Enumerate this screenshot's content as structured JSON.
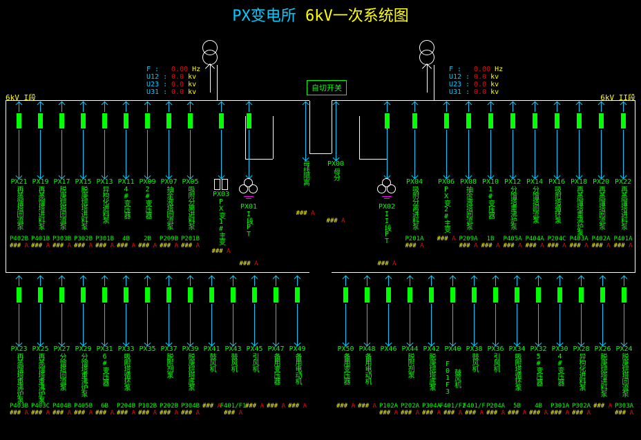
{
  "title": {
    "p1": "PX变电所",
    "p2": "6kV一次系统图"
  },
  "sections": {
    "left": "6kV I段",
    "right": "6kV II段"
  },
  "switch_label": "自切开关",
  "colors": {
    "bg": "#000000",
    "breaker_on": "#00ff00",
    "breaker_off": "#ff0000",
    "text_id": "#00ff00",
    "text_cyan": "#00ccff",
    "text_yellow": "#ffff00",
    "text_red": "#ff0000",
    "busbar": "#ffffff",
    "ground": "#ff00ff"
  },
  "measurements": {
    "left": {
      "F": {
        "v": "0.00",
        "u": "Hz"
      },
      "U12": {
        "v": "0.0",
        "u": "kv"
      },
      "U23": {
        "v": "0.0",
        "u": "kv"
      },
      "U31": {
        "v": "0.0",
        "u": "kv"
      }
    },
    "right": {
      "F": {
        "v": "0.00",
        "u": "Hz"
      },
      "U12": {
        "v": "0.0",
        "u": "kv"
      },
      "U23": {
        "v": "0.0",
        "u": "kv"
      },
      "U31": {
        "v": "0.0",
        "u": "kv"
      }
    }
  },
  "reading_placeholder": {
    "hash": "###",
    "amp": "A"
  },
  "top_left": [
    {
      "id": "PX21",
      "name": "再蒸馏塔回流泵",
      "code": "P402B"
    },
    {
      "id": "PX19",
      "name": "再蒸馏塔进料泵",
      "code": "P401B"
    },
    {
      "id": "PX17",
      "name": "脱庚烷塔回流泵",
      "code": "P303B"
    },
    {
      "id": "PX15",
      "name": "脱庚烷塔进料泵",
      "code": "P302B"
    },
    {
      "id": "PX13",
      "name": "异构化进料泵",
      "code": "P301B"
    },
    {
      "id": "PX11",
      "name": "4#变压器",
      "code": "4B"
    },
    {
      "id": "PX09",
      "name": "2#变压器",
      "code": "2B"
    },
    {
      "id": "PX07",
      "name": "抽余液塔回流泵",
      "code": "P209B"
    },
    {
      "id": "PX05",
      "name": "吸附分离进料泵",
      "code": "P201B"
    }
  ],
  "mid_left": [
    {
      "id": "PX03",
      "name": "PX变1#主变",
      "code": "",
      "sym": "pt"
    },
    {
      "id": "PX01",
      "name": "I段PT",
      "code": "",
      "sym": "tri"
    }
  ],
  "mid_center": [
    {
      "id": "",
      "name": "母线隔离",
      "code": ""
    },
    {
      "id": "PX00",
      "name": "母分",
      "code": ""
    }
  ],
  "mid_right": [
    {
      "id": "PX02",
      "name": "II段PT",
      "code": "",
      "sym": "tri"
    },
    {
      "id": "PX04",
      "name": "吸附分离进料泵",
      "code": "P201A"
    }
  ],
  "top_right": [
    {
      "id": "PX06",
      "name": "PX变2#主变",
      "code": ""
    },
    {
      "id": "PX08",
      "name": "抽余液塔回流泵",
      "code": "P209A"
    },
    {
      "id": "PX10",
      "name": "1#变压器",
      "code": "1B"
    },
    {
      "id": "PX12",
      "name": "分馏塔重沸炉泵",
      "code": "P405A"
    },
    {
      "id": "PX14",
      "name": "分馏塔回流泵",
      "code": "P404A"
    },
    {
      "id": "PX16",
      "name": "吸附塔循环泵",
      "code": "P204C"
    },
    {
      "id": "PX18",
      "name": "再蒸馏塔重沸炉泵",
      "code": "P403A"
    },
    {
      "id": "PX20",
      "name": "再蒸馏塔回流泵",
      "code": "P402A"
    },
    {
      "id": "PX22",
      "name": "再蒸馏塔进料泵",
      "code": "P401A"
    }
  ],
  "bot_left": [
    {
      "id": "PX23",
      "name": "再蒸馏塔重沸炉泵",
      "code": "P403B"
    },
    {
      "id": "PX25",
      "name": "再蒸馏塔重沸炉泵",
      "code": "P403C"
    },
    {
      "id": "PX27",
      "name": "分馏塔回流泵",
      "code": "P404B"
    },
    {
      "id": "PX29",
      "name": "分馏塔重沸炉泵",
      "code": "P405B"
    },
    {
      "id": "PX31",
      "name": "6#变压器",
      "code": "6B"
    },
    {
      "id": "PX33",
      "name": "吸附塔循环泵",
      "code": "P204B"
    },
    {
      "id": "PX35",
      "name": "",
      "code": "P102B"
    },
    {
      "id": "PX37",
      "name": "脱附剂泵",
      "code": "P202B"
    },
    {
      "id": "PX39",
      "name": "脱庚烷塔底泵",
      "code": "P304B"
    },
    {
      "id": "PX41",
      "name": "鼓风机",
      "code": ""
    },
    {
      "id": "PX43",
      "name": "鼓风机",
      "code": "F401/F1"
    },
    {
      "id": "PX45",
      "name": "引风机",
      "code": ""
    },
    {
      "id": "PX47",
      "name": "备用变压器",
      "code": ""
    },
    {
      "id": "PX49",
      "name": "备用电动机",
      "code": ""
    }
  ],
  "bot_right": [
    {
      "id": "PX50",
      "name": "备用变压器",
      "code": ""
    },
    {
      "id": "PX48",
      "name": "备用电动机",
      "code": ""
    },
    {
      "id": "PX46",
      "name": "",
      "code": "P102A"
    },
    {
      "id": "PX44",
      "name": "脱附剂泵",
      "code": "P202A"
    },
    {
      "id": "PX42",
      "name": "脱庚烷塔底泵",
      "code": "P304A"
    },
    {
      "id": "PX40",
      "name": "鼓风机F01F3",
      "code": "F401/F2"
    },
    {
      "id": "PX38",
      "name": "鼓风机",
      "code": "F401/F"
    },
    {
      "id": "PX36",
      "name": "引风机",
      "code": "P204A"
    },
    {
      "id": "PX34",
      "name": "吸附塔循环泵",
      "code": "5B"
    },
    {
      "id": "PX32",
      "name": "5#变压器",
      "code": "4B"
    },
    {
      "id": "PX30",
      "name": "4#变压器",
      "code": "P301A"
    },
    {
      "id": "PX28",
      "name": "异构化进料泵",
      "code": "P302A"
    },
    {
      "id": "PX26",
      "name": "脱庚烷塔进料泵",
      "code": ""
    },
    {
      "id": "PX24",
      "name": "脱庚烷塔回流泵",
      "code": "P303A"
    }
  ]
}
